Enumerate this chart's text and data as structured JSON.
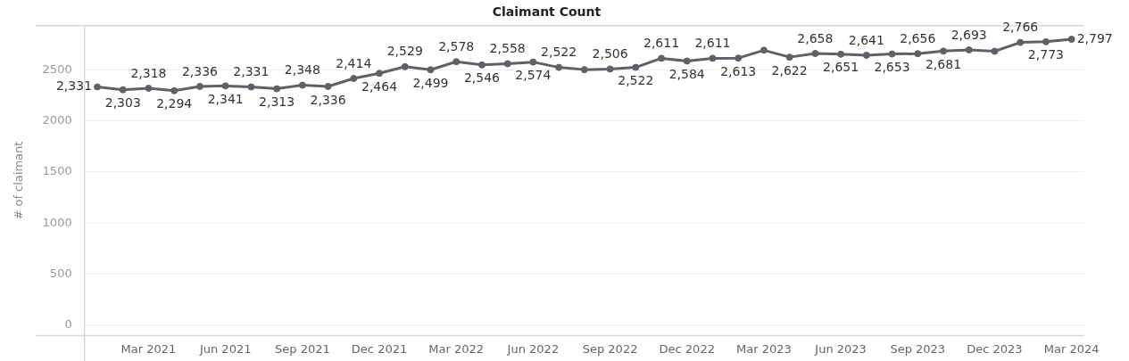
{
  "chart_data": {
    "type": "line",
    "title": "Claimant Count",
    "ylabel": "# of claimant",
    "categories": [
      null,
      null,
      "Mar 2021",
      null,
      null,
      "Jun 2021",
      null,
      null,
      "Sep 2021",
      null,
      null,
      "Dec 2021",
      null,
      null,
      "Mar 2022",
      null,
      null,
      "Jun 2022",
      null,
      null,
      "Sep 2022",
      null,
      null,
      "Dec 2022",
      null,
      null,
      "Mar 2023",
      null,
      null,
      "Jun 2023",
      null,
      null,
      "Sep 2023",
      null,
      null,
      "Dec 2023",
      null,
      null,
      "Mar 2024"
    ],
    "values": [
      2331,
      2303,
      2318,
      2294,
      2336,
      2341,
      2331,
      2313,
      2348,
      2336,
      2414,
      2464,
      2529,
      2499,
      2578,
      2546,
      2558,
      2574,
      2522,
      2500,
      2506,
      2522,
      2611,
      2584,
      2611,
      2613,
      2690,
      2622,
      2658,
      2651,
      2641,
      2653,
      2656,
      2681,
      2693,
      2680,
      2766,
      2773,
      2797
    ],
    "value_labels": [
      "2,331",
      "2,303",
      "2,318",
      "2,294",
      "2,336",
      "2,341",
      "2,331",
      "2,313",
      "2,348",
      "2,336",
      "2,414",
      "2,464",
      "2,529",
      "2,499",
      "2,578",
      "2,546",
      "2,558",
      "2,574",
      "2,522",
      null,
      "2,506",
      "2,522",
      "2,611",
      "2,584",
      "2,611",
      "2,613",
      null,
      "2,622",
      "2,658",
      "2,651",
      "2,641",
      "2,653",
      "2,656",
      "2,681",
      "2,693",
      null,
      "2,766",
      "2,773",
      "2,797"
    ],
    "color": "#5f6169",
    "marker": "circle",
    "grid": "y",
    "legend": false,
    "ylim": [
      -100,
      2930
    ],
    "yticks": [
      0,
      500,
      1000,
      1500,
      2000,
      2500
    ]
  }
}
